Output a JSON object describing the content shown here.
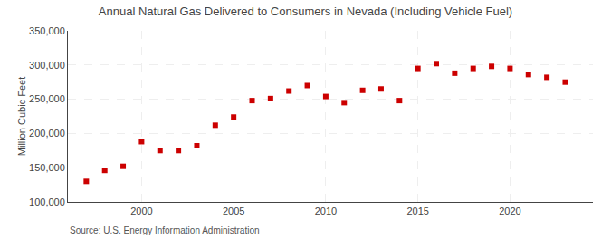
{
  "chart_data": {
    "type": "scatter",
    "title": "Annual Natural Gas Delivered to Consumers in Nevada (Including Vehicle Fuel)",
    "ylabel": "Million Cubic Feet",
    "annotations": [
      "Source: U.S. Energy Information Administration"
    ],
    "x": [
      1997,
      1998,
      1999,
      2000,
      2001,
      2002,
      2003,
      2004,
      2005,
      2006,
      2007,
      2008,
      2009,
      2010,
      2011,
      2012,
      2013,
      2014,
      2015,
      2016,
      2017,
      2018,
      2019,
      2020,
      2021,
      2022,
      2023
    ],
    "values": [
      130000,
      146000,
      152000,
      188000,
      175000,
      175000,
      182000,
      212000,
      224000,
      248000,
      251000,
      262000,
      270000,
      254000,
      245000,
      263000,
      265000,
      248000,
      295000,
      302000,
      288000,
      295000,
      298000,
      295000,
      286000,
      282000,
      275000
    ],
    "color": "#cc0000",
    "marker": "square",
    "xlim": [
      1996,
      2024.5
    ],
    "xticks": [
      2000,
      2005,
      2010,
      2015,
      2020
    ],
    "ylim": [
      100000,
      350000
    ],
    "yticks": [
      {
        "value": 100000,
        "label": "100,000"
      },
      {
        "value": 150000,
        "label": "150,000"
      },
      {
        "value": 200000,
        "label": "200,000"
      },
      {
        "value": 250000,
        "label": "250,000"
      },
      {
        "value": 300000,
        "label": "300,000"
      },
      {
        "value": 350000,
        "label": "350,000"
      }
    ],
    "grid": true
  }
}
